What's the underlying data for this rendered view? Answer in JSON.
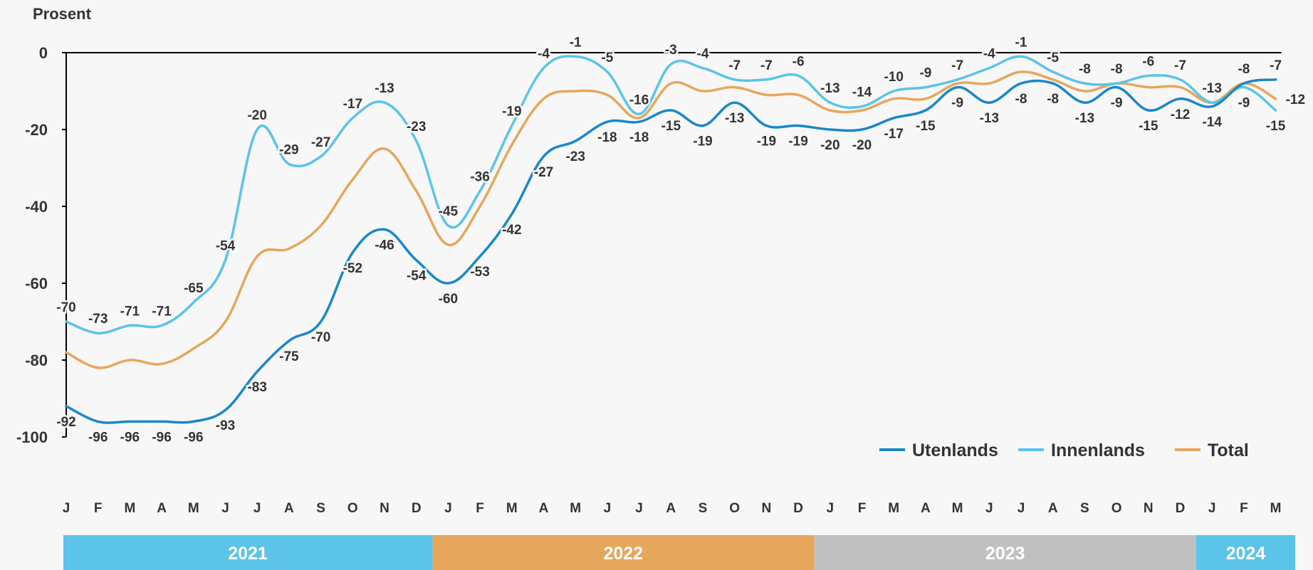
{
  "chart_data": {
    "type": "line",
    "ylabel": "Prosent",
    "ylim": [
      -100,
      0
    ],
    "yticks": [
      0,
      -20,
      -40,
      -60,
      -80,
      -100
    ],
    "months": [
      "J",
      "F",
      "M",
      "A",
      "M",
      "J",
      "J",
      "A",
      "S",
      "O",
      "N",
      "D",
      "J",
      "F",
      "M",
      "A",
      "M",
      "J",
      "J",
      "A",
      "S",
      "O",
      "N",
      "D",
      "J",
      "F",
      "M",
      "A",
      "M",
      "J",
      "J",
      "A",
      "S",
      "O",
      "N",
      "D",
      "J",
      "F",
      "M"
    ],
    "years": [
      {
        "label": "2021",
        "months": 12,
        "color": "#5bc4e8"
      },
      {
        "label": "2022",
        "months": 12,
        "color": "#e6a75d"
      },
      {
        "label": "2023",
        "months": 12,
        "color": "#c0c0c0"
      },
      {
        "label": "2024",
        "months": 3,
        "color": "#5bc4e8"
      }
    ],
    "legend_position": "bottom-right",
    "series": [
      {
        "name": "Utenlands",
        "color": "#1a87c9",
        "labeled": true,
        "values": [
          -92,
          -96,
          -96,
          -96,
          -96,
          -93,
          -83,
          -75,
          -70,
          -52,
          -46,
          -54,
          -60,
          -53,
          -42,
          -27,
          -23,
          -18,
          -18,
          -15,
          -19,
          -13,
          -19,
          -19,
          -20,
          -20,
          -17,
          -15,
          -9,
          -13,
          -8,
          -8,
          -13,
          -9,
          -15,
          -12,
          -14,
          -8,
          -7
        ]
      },
      {
        "name": "Innenlands",
        "color": "#5bc4e8",
        "labeled": true,
        "values": [
          -70,
          -73,
          -71,
          -71,
          -65,
          -54,
          -20,
          -29,
          -27,
          -17,
          -13,
          -23,
          -45,
          -36,
          -19,
          -4,
          -1,
          -5,
          -16,
          -3,
          -4,
          -7,
          -7,
          -6,
          -13,
          -14,
          -10,
          -9,
          -7,
          -4,
          -1,
          -5,
          -8,
          -8,
          -6,
          -7,
          -13,
          -9,
          -15
        ]
      },
      {
        "name": "Total",
        "color": "#e6a75d",
        "labeled": false,
        "values": [
          -78,
          -82,
          -80,
          -81,
          -77,
          -70,
          -53,
          -51,
          -45,
          -33,
          -25,
          -36,
          -50,
          -40,
          -24,
          -12,
          -10,
          -11,
          -17,
          -8,
          -10,
          -9,
          -11,
          -11,
          -15,
          -15,
          -12,
          -12,
          -8,
          -8,
          -5,
          -7,
          -10,
          -8,
          -9,
          -9,
          -13,
          -8,
          -12
        ]
      }
    ],
    "extra_labels": {
      "Total": {
        "last": "-12"
      }
    }
  }
}
